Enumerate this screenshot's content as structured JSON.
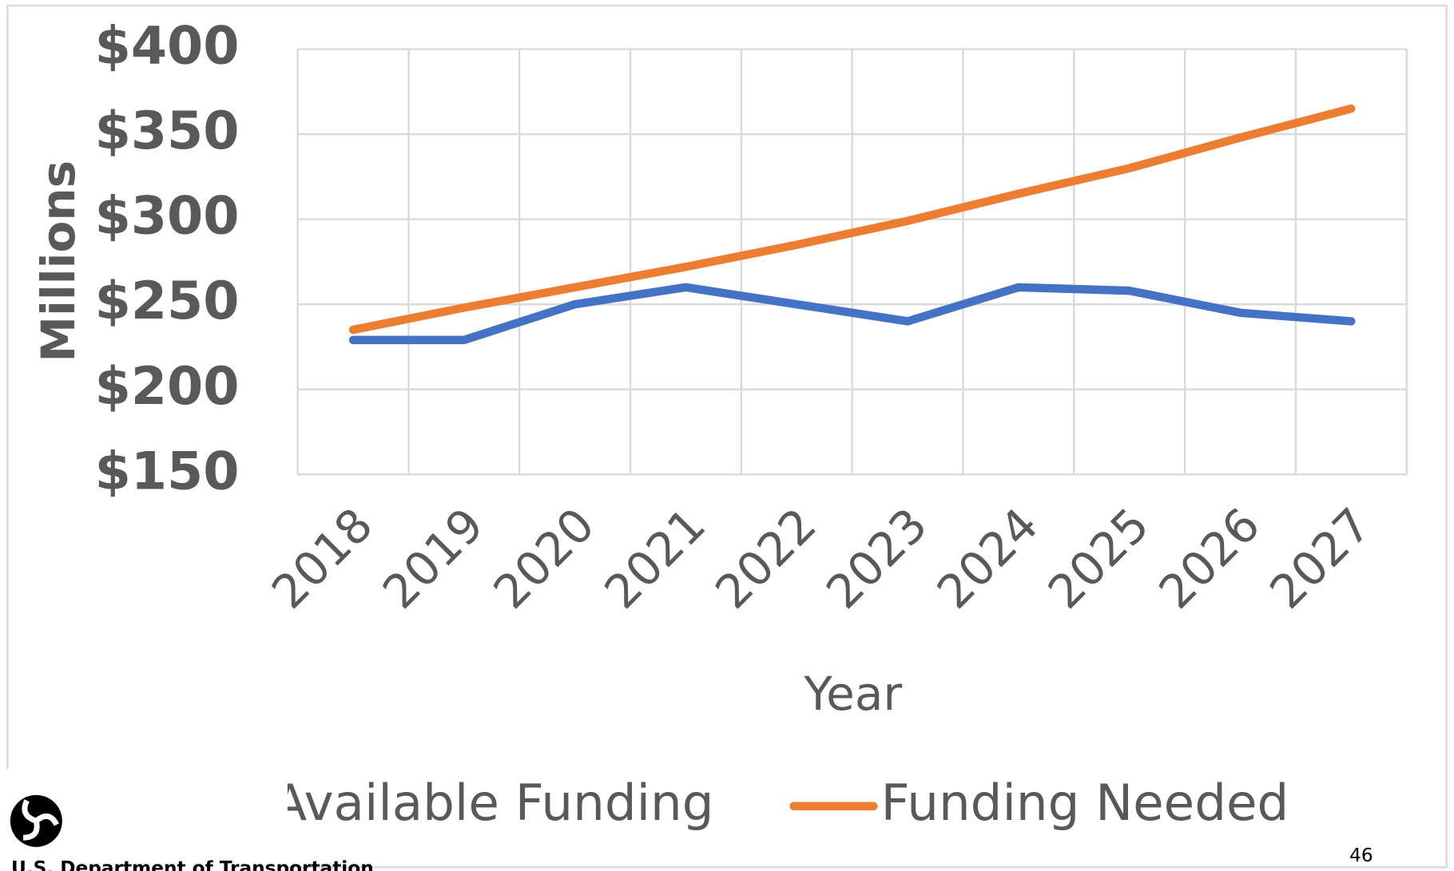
{
  "chart_data": {
    "type": "line",
    "categories": [
      "2018",
      "2019",
      "2020",
      "2021",
      "2022",
      "2023",
      "2024",
      "2025",
      "2026",
      "2027"
    ],
    "series": [
      {
        "name": "Available Funding",
        "color": "#4472c4",
        "values": [
          229,
          229,
          250,
          260,
          250,
          240,
          260,
          258,
          245,
          240
        ]
      },
      {
        "name": "Funding Needed",
        "color": "#ed7d31",
        "values": [
          235,
          248,
          260,
          272,
          285,
          299,
          315,
          330,
          348,
          365
        ]
      }
    ],
    "xlabel": "Year",
    "ylabel": "Millions",
    "ylim": [
      150,
      400
    ],
    "yticks": [
      {
        "value": 150,
        "label": "$150"
      },
      {
        "value": 200,
        "label": "$200"
      },
      {
        "value": 250,
        "label": "$250"
      },
      {
        "value": 300,
        "label": "$300"
      },
      {
        "value": 350,
        "label": "$350"
      },
      {
        "value": 400,
        "label": "$400"
      }
    ],
    "grid": true,
    "legend": "bottom"
  },
  "footer": {
    "organization": "U.S. Department of Transportation",
    "page_number": "46"
  }
}
